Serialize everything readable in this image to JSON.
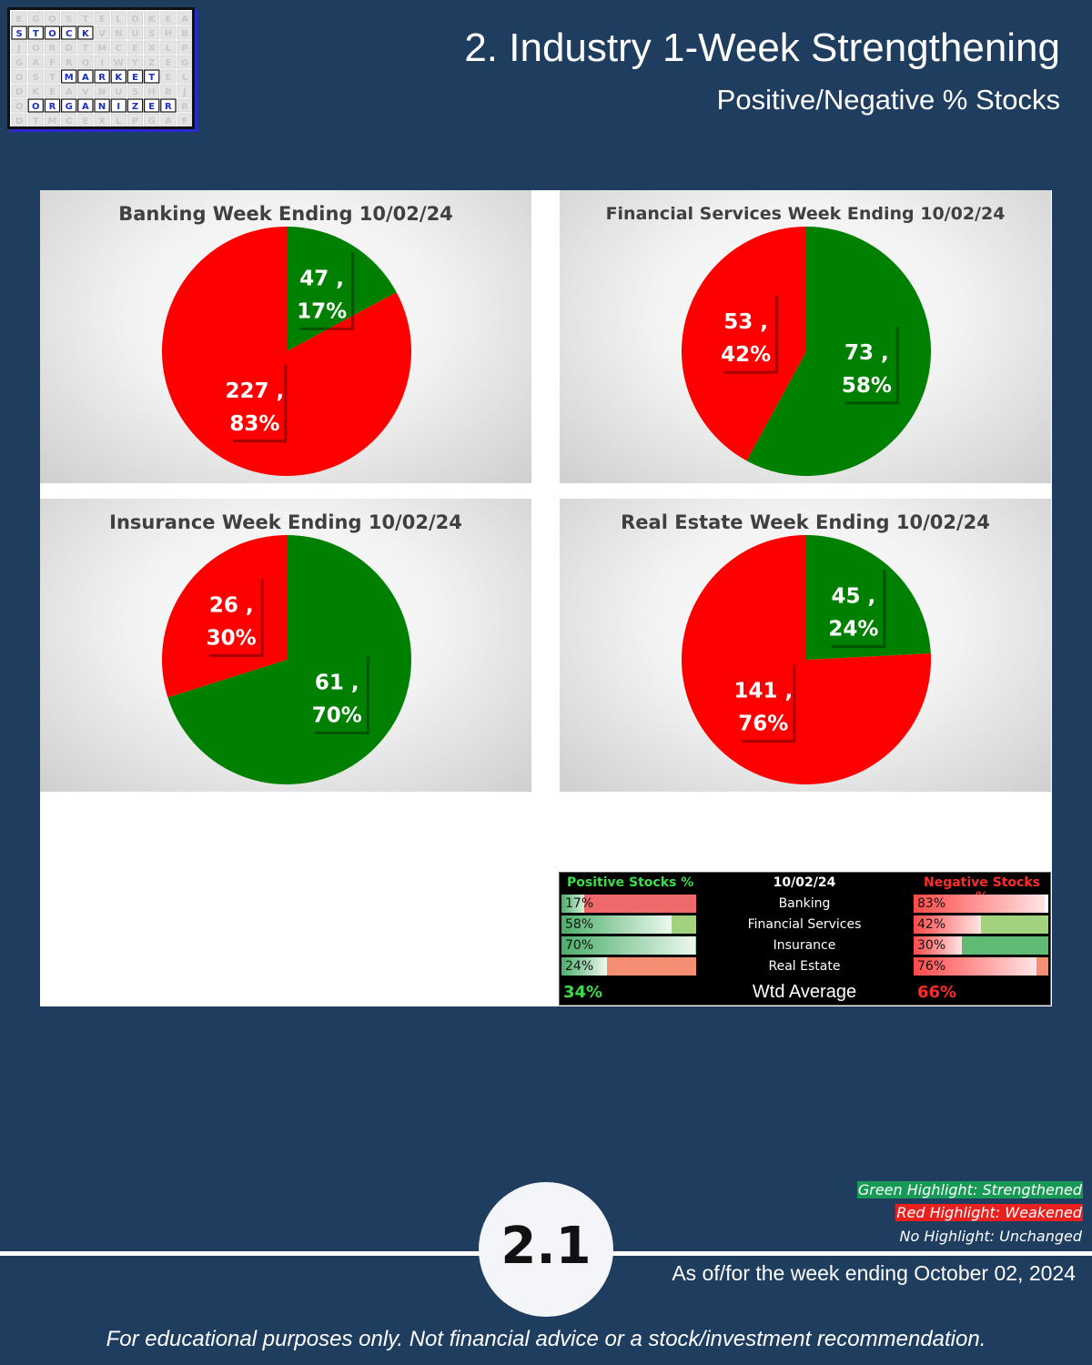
{
  "logo": {
    "rows": [
      "STOCK",
      "MARKET",
      "ORGANIZER"
    ]
  },
  "header": {
    "title": "2. Industry 1-Week Strengthening",
    "subtitle": "Positive/Negative % Stocks"
  },
  "colors": {
    "positive": "#008000",
    "negative": "#ff0000",
    "background": "#1e3d5f"
  },
  "chart_data": [
    {
      "type": "pie",
      "title": "Banking Week Ending 10/02/24",
      "slices": [
        {
          "label": "47 , 17%",
          "count_pct": "47 ,",
          "pct": "17%",
          "value": 47,
          "color": "#008000"
        },
        {
          "label": "227 , 83%",
          "count_pct": "227 ,",
          "pct": "83%",
          "value": 227,
          "color": "#ff0000"
        }
      ]
    },
    {
      "type": "pie",
      "title": "Financial Services Week Ending 10/02/24",
      "slices": [
        {
          "label": "73 , 58%",
          "count_pct": "73 ,",
          "pct": "58%",
          "value": 73,
          "color": "#008000"
        },
        {
          "label": "53 , 42%",
          "count_pct": "53 ,",
          "pct": "42%",
          "value": 53,
          "color": "#ff0000"
        }
      ]
    },
    {
      "type": "pie",
      "title": "Insurance Week Ending 10/02/24",
      "slices": [
        {
          "label": "61 , 70%",
          "count_pct": "61 ,",
          "pct": "70%",
          "value": 61,
          "color": "#008000"
        },
        {
          "label": "26 , 30%",
          "count_pct": "26 ,",
          "pct": "30%",
          "value": 26,
          "color": "#ff0000"
        }
      ]
    },
    {
      "type": "pie",
      "title": "Real Estate Week Ending 10/02/24",
      "slices": [
        {
          "label": "45 , 24%",
          "count_pct": "45 ,",
          "pct": "24%",
          "value": 45,
          "color": "#008000"
        },
        {
          "label": "141 , 76%",
          "count_pct": "141 ,",
          "pct": "76%",
          "value": 141,
          "color": "#ff0000"
        }
      ]
    }
  ],
  "summary": {
    "positive_header": "Positive Stocks %",
    "date_header": "10/02/24",
    "negative_header": "Negative Stocks %",
    "rows": [
      {
        "name": "Banking",
        "positive": "17%",
        "negative": "83%"
      },
      {
        "name": "Financial Services",
        "positive": "58%",
        "negative": "42%"
      },
      {
        "name": "Insurance",
        "positive": "70%",
        "negative": "30%"
      },
      {
        "name": "Real Estate",
        "positive": "24%",
        "negative": "76%"
      }
    ],
    "positive_avg": "34%",
    "avg_label": "Wtd Average",
    "negative_avg": "66%"
  },
  "legend": {
    "green": "Green Highlight: Strengthened",
    "red": "Red Highlight: Weakened",
    "none": "No Highlight: Unchanged"
  },
  "page_number": "2.1",
  "as_of": "As of/for the week ending October 02, 2024",
  "disclaimer": "For educational purposes only. Not financial advice or a stock/investment recommendation."
}
